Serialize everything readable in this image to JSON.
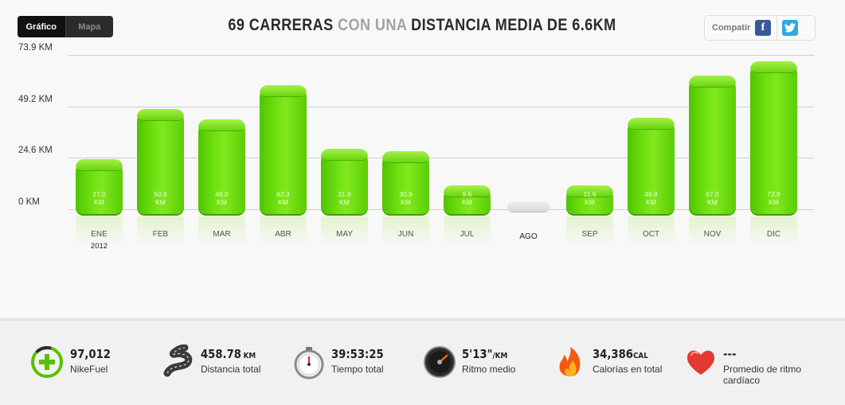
{
  "toggle": {
    "grafico": "Gráfico",
    "mapa": "Mapa"
  },
  "headline": {
    "part1": "69 CARRERAS",
    "part2": "CON UNA",
    "part3": "DISTANCIA MEDIA DE 6.6KM"
  },
  "share": {
    "label": "Compatir",
    "facebook": "f",
    "twitter": "t"
  },
  "colors": {
    "bar": "#6fe010",
    "facebook": "#3b5998",
    "twitter": "#2fa9e0"
  },
  "chart_data": {
    "type": "bar",
    "categories": [
      "ENE",
      "FEB",
      "MAR",
      "ABR",
      "MAY",
      "JUN",
      "JUL",
      "AGO",
      "SEP",
      "OCT",
      "NOV",
      "DIC"
    ],
    "values": [
      27.0,
      50.9,
      46.0,
      62.3,
      31.9,
      30.9,
      9.6,
      0,
      11.9,
      46.8,
      67.0,
      73.9
    ],
    "value_labels": [
      "27.0",
      "50.9",
      "46.0",
      "62.3",
      "31.9",
      "30.9",
      "9.6",
      "",
      "11.9",
      "46.8",
      "67.0",
      "73.9"
    ],
    "value_unit": "KM",
    "year_label": "2012",
    "y_ticks": [
      "0 KM",
      "24.6 KM",
      "49.2 KM",
      "73.9 KM"
    ],
    "y_tick_values": [
      0,
      24.6,
      49.2,
      73.9
    ],
    "ylim": [
      0,
      73.9
    ],
    "grid": true
  },
  "stats": {
    "fuel": {
      "value": "97,012",
      "unit": "",
      "label": "NikeFuel",
      "icon": "nikefuel-icon"
    },
    "distance": {
      "value": "458.78",
      "unit": "KM",
      "label": "Distancia total",
      "icon": "road-icon"
    },
    "time": {
      "value": "39:53:25",
      "unit": "",
      "label": "Tiempo total",
      "icon": "stopwatch-icon"
    },
    "pace": {
      "value": "5'13\"",
      "unit": "/KM",
      "label": "Ritmo medio",
      "icon": "speedometer-icon"
    },
    "calories": {
      "value": "34,386",
      "unit": "CAL",
      "label": "Calorías en total",
      "icon": "flame-icon"
    },
    "heart": {
      "value": "---",
      "unit": "",
      "label": "Promedio de ritmo cardíaco",
      "icon": "heart-icon"
    }
  }
}
